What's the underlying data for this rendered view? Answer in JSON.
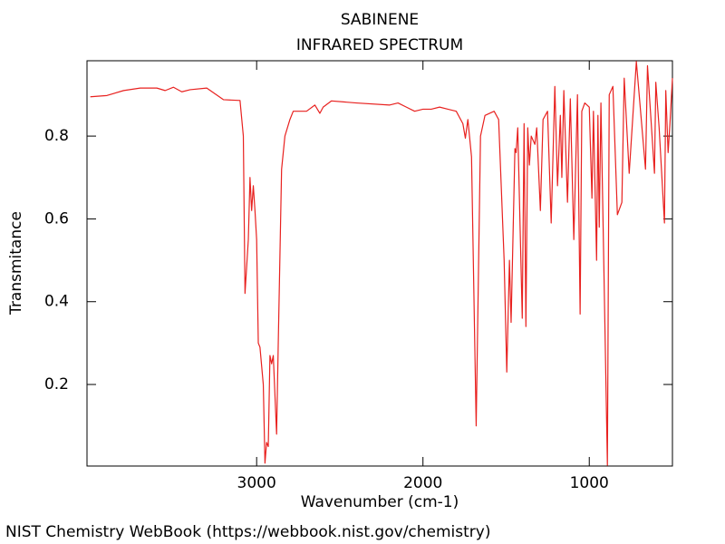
{
  "chart_data": {
    "type": "line",
    "title": "SABINENE",
    "subtitle": "INFRARED SPECTRUM",
    "x_label": "Wavenumber (cm-1)",
    "y_label": "Transmitance",
    "source": "NIST Chemistry WebBook (https://webbook.nist.gov/chemistry)",
    "xlim": [
      4020,
      500
    ],
    "ylim": [
      0.003,
      0.982
    ],
    "xticks": [
      3000,
      2000,
      1000
    ],
    "yticks": [
      0.2,
      0.4,
      0.6,
      0.8
    ],
    "grid": false,
    "x": [
      4000,
      3900,
      3800,
      3700,
      3600,
      3550,
      3500,
      3450,
      3400,
      3300,
      3200,
      3100,
      3080,
      3070,
      3050,
      3040,
      3030,
      3020,
      3010,
      3000,
      2990,
      2980,
      2960,
      2950,
      2940,
      2930,
      2920,
      2910,
      2900,
      2880,
      2870,
      2850,
      2830,
      2800,
      2780,
      2750,
      2700,
      2650,
      2620,
      2600,
      2550,
      2400,
      2200,
      2150,
      2100,
      2050,
      2000,
      1950,
      1900,
      1850,
      1800,
      1760,
      1745,
      1730,
      1708,
      1680,
      1654,
      1627,
      1572,
      1545,
      1512,
      1496,
      1480,
      1470,
      1447,
      1440,
      1430,
      1403,
      1392,
      1381,
      1370,
      1360,
      1349,
      1327,
      1316,
      1294,
      1278,
      1251,
      1229,
      1207,
      1191,
      1174,
      1165,
      1153,
      1131,
      1114,
      1093,
      1071,
      1055,
      1045,
      1027,
      1000,
      984,
      975,
      956,
      948,
      940,
      930,
      891,
      880,
      858,
      831,
      804,
      790,
      760,
      717,
      662,
      650,
      608,
      600,
      580,
      548,
      540,
      526,
      515,
      500
    ],
    "series": [
      {
        "name": "Sabinene",
        "color": "#e8211f",
        "values": [
          0.895,
          0.898,
          0.91,
          0.916,
          0.916,
          0.91,
          0.918,
          0.907,
          0.912,
          0.916,
          0.888,
          0.886,
          0.8,
          0.42,
          0.55,
          0.7,
          0.62,
          0.68,
          0.62,
          0.55,
          0.3,
          0.29,
          0.2,
          0.01,
          0.06,
          0.05,
          0.27,
          0.25,
          0.27,
          0.08,
          0.3,
          0.72,
          0.8,
          0.84,
          0.86,
          0.86,
          0.86,
          0.875,
          0.855,
          0.87,
          0.885,
          0.88,
          0.875,
          0.88,
          0.87,
          0.86,
          0.865,
          0.865,
          0.87,
          0.865,
          0.86,
          0.83,
          0.795,
          0.84,
          0.75,
          0.1,
          0.8,
          0.85,
          0.86,
          0.84,
          0.5,
          0.23,
          0.5,
          0.35,
          0.77,
          0.76,
          0.82,
          0.36,
          0.83,
          0.34,
          0.82,
          0.73,
          0.8,
          0.78,
          0.82,
          0.62,
          0.84,
          0.86,
          0.59,
          0.92,
          0.68,
          0.85,
          0.7,
          0.91,
          0.64,
          0.89,
          0.55,
          0.9,
          0.37,
          0.86,
          0.88,
          0.87,
          0.65,
          0.86,
          0.5,
          0.85,
          0.58,
          0.88,
          0.005,
          0.9,
          0.92,
          0.61,
          0.64,
          0.94,
          0.71,
          0.98,
          0.72,
          0.97,
          0.71,
          0.93,
          0.82,
          0.59,
          0.91,
          0.76,
          0.83,
          0.94
        ]
      }
    ]
  }
}
